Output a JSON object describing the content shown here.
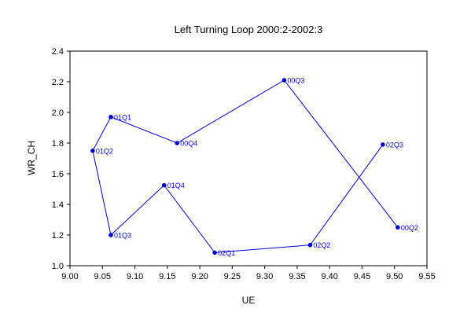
{
  "chart_data": {
    "type": "scatter",
    "title": "Left Turning Loop 2000:2-2002:3",
    "xlabel": "UE",
    "ylabel": "WR_CH",
    "xlim": [
      9.0,
      9.55
    ],
    "ylim": [
      1.0,
      2.4
    ],
    "x_ticks": [
      "9.00",
      "9.05",
      "9.10",
      "9.15",
      "9.20",
      "9.25",
      "9.30",
      "9.35",
      "9.40",
      "9.45",
      "9.50",
      "9.55"
    ],
    "y_ticks": [
      "1.0",
      "1.2",
      "1.4",
      "1.6",
      "1.8",
      "2.0",
      "2.2",
      "2.4"
    ],
    "grid": false,
    "connected": true,
    "line_color": "#0000cc",
    "points": [
      {
        "label": "00Q2",
        "x": 9.505,
        "y": 1.25
      },
      {
        "label": "00Q3",
        "x": 9.33,
        "y": 2.21
      },
      {
        "label": "00Q4",
        "x": 9.165,
        "y": 1.8
      },
      {
        "label": "01Q1",
        "x": 9.063,
        "y": 1.97
      },
      {
        "label": "01Q2",
        "x": 9.035,
        "y": 1.75
      },
      {
        "label": "01Q3",
        "x": 9.063,
        "y": 1.2
      },
      {
        "label": "01Q4",
        "x": 9.145,
        "y": 1.525
      },
      {
        "label": "02Q1",
        "x": 9.223,
        "y": 1.085
      },
      {
        "label": "02Q2",
        "x": 9.37,
        "y": 1.135
      },
      {
        "label": "02Q3",
        "x": 9.482,
        "y": 1.79
      }
    ]
  }
}
